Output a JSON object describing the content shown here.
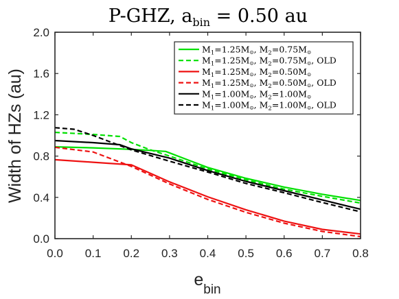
{
  "chart_data": {
    "type": "line",
    "title": {
      "main": "P-GHZ, a",
      "sub": "bin",
      "rest": " = 0.50 au"
    },
    "xlabel": {
      "main": "e",
      "sub": "bin"
    },
    "ylabel": "Width of HZs (au)",
    "xlim": [
      0.0,
      0.8
    ],
    "ylim": [
      0.0,
      2.0
    ],
    "xticks": [
      "0.0",
      "0.1",
      "0.2",
      "0.3",
      "0.4",
      "0.5",
      "0.6",
      "0.7",
      "0.8"
    ],
    "yticks": [
      "0.0",
      "0.4",
      "0.8",
      "1.2",
      "1.6",
      "2.0"
    ],
    "legend_position": "top-right",
    "series": [
      {
        "name": "M₁=1.25M⊙, M₂=0.75M⊙",
        "legend": {
          "m1": "1.25",
          "m2": "0.75",
          "old": false
        },
        "color": "#00e000",
        "dash": false,
        "x": [
          0.0,
          0.1,
          0.2,
          0.25,
          0.29,
          0.35,
          0.4,
          0.5,
          0.6,
          0.7,
          0.8
        ],
        "y": [
          0.89,
          0.88,
          0.865,
          0.855,
          0.845,
          0.76,
          0.69,
          0.585,
          0.5,
          0.43,
          0.37
        ]
      },
      {
        "name": "M₁=1.25M⊙, M₂=0.75M⊙, OLD",
        "legend": {
          "m1": "1.25",
          "m2": "0.75",
          "old": true
        },
        "color": "#00e000",
        "dash": true,
        "x": [
          0.0,
          0.1,
          0.17,
          0.2,
          0.25,
          0.3,
          0.4,
          0.5,
          0.6,
          0.7,
          0.8
        ],
        "y": [
          1.03,
          1.01,
          0.99,
          0.93,
          0.86,
          0.8,
          0.675,
          0.57,
          0.48,
          0.41,
          0.345
        ]
      },
      {
        "name": "M₁=1.25M⊙, M₂=0.50M⊙",
        "legend": {
          "m1": "1.25",
          "m2": "0.50",
          "old": false
        },
        "color": "#ee1111",
        "dash": false,
        "x": [
          0.0,
          0.1,
          0.2,
          0.3,
          0.4,
          0.5,
          0.6,
          0.7,
          0.8
        ],
        "y": [
          0.765,
          0.74,
          0.715,
          0.55,
          0.405,
          0.28,
          0.17,
          0.09,
          0.045
        ]
      },
      {
        "name": "M₁=1.25M⊙, M₂=0.50M⊙, OLD",
        "legend": {
          "m1": "1.25",
          "m2": "0.50",
          "old": true
        },
        "color": "#ee1111",
        "dash": true,
        "x": [
          0.0,
          0.1,
          0.2,
          0.3,
          0.4,
          0.5,
          0.6,
          0.7,
          0.8
        ],
        "y": [
          0.885,
          0.84,
          0.7,
          0.53,
          0.38,
          0.255,
          0.15,
          0.07,
          0.02
        ]
      },
      {
        "name": "M₁=1.00M⊙, M₂=1.00M⊙",
        "legend": {
          "m1": "1.00",
          "m2": "1.00",
          "old": false
        },
        "color": "#000000",
        "dash": false,
        "x": [
          0.0,
          0.1,
          0.17,
          0.2,
          0.3,
          0.4,
          0.5,
          0.6,
          0.7,
          0.8
        ],
        "y": [
          0.95,
          0.93,
          0.91,
          0.87,
          0.78,
          0.66,
          0.555,
          0.465,
          0.375,
          0.285
        ]
      },
      {
        "name": "M₁=1.00M⊙, M₂=1.00M⊙, OLD",
        "legend": {
          "m1": "1.00",
          "m2": "1.00",
          "old": true
        },
        "color": "#000000",
        "dash": true,
        "x": [
          0.0,
          0.05,
          0.1,
          0.2,
          0.3,
          0.4,
          0.5,
          0.6,
          0.7,
          0.8
        ],
        "y": [
          1.075,
          1.06,
          1.0,
          0.86,
          0.75,
          0.645,
          0.535,
          0.445,
          0.35,
          0.26
        ]
      }
    ]
  }
}
